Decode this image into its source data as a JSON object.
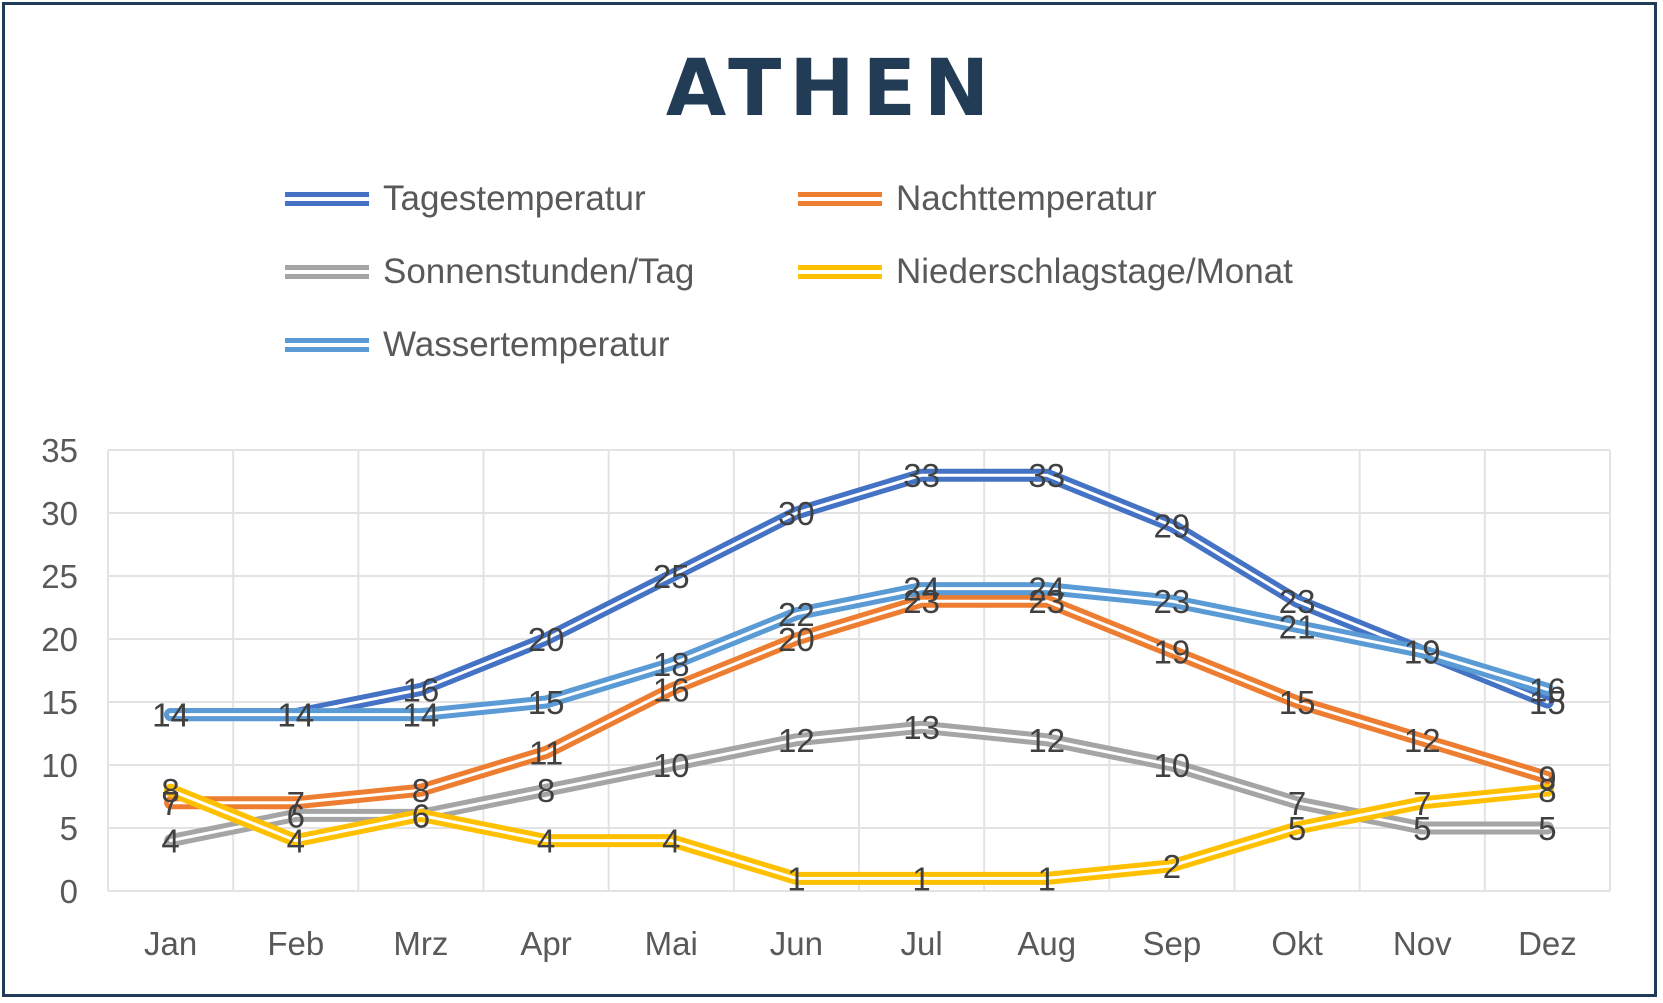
{
  "chart_data": {
    "type": "line",
    "title": "ATHEN",
    "categories": [
      "Jan",
      "Feb",
      "Mrz",
      "Apr",
      "Mai",
      "Jun",
      "Jul",
      "Aug",
      "Sep",
      "Okt",
      "Nov",
      "Dez"
    ],
    "ylim": [
      0,
      35
    ],
    "yticks": [
      "0",
      "5",
      "10",
      "15",
      "20",
      "25",
      "30",
      "35"
    ],
    "grid": true,
    "legend_position": "top",
    "series": [
      {
        "name": "Tagestemperatur",
        "color": "#4472c4",
        "values": [
          14,
          14,
          16,
          20,
          25,
          30,
          33,
          33,
          29,
          23,
          19,
          15
        ]
      },
      {
        "name": "Nachttemperatur",
        "color": "#ed7d31",
        "values": [
          7,
          7,
          8,
          11,
          16,
          20,
          23,
          23,
          19,
          15,
          12,
          9
        ]
      },
      {
        "name": "Sonnenstunden/Tag",
        "color": "#a5a5a5",
        "values": [
          4,
          6,
          6,
          8,
          10,
          12,
          13,
          12,
          10,
          7,
          5,
          5
        ]
      },
      {
        "name": "Niederschlagstage/Monat",
        "color": "#ffc000",
        "values": [
          8,
          4,
          6,
          4,
          4,
          1,
          1,
          1,
          2,
          5,
          7,
          8
        ]
      },
      {
        "name": "Wassertemperatur",
        "color": "#5b9bd5",
        "values": [
          14,
          14,
          14,
          15,
          18,
          22,
          24,
          24,
          23,
          21,
          19,
          16
        ]
      }
    ]
  }
}
